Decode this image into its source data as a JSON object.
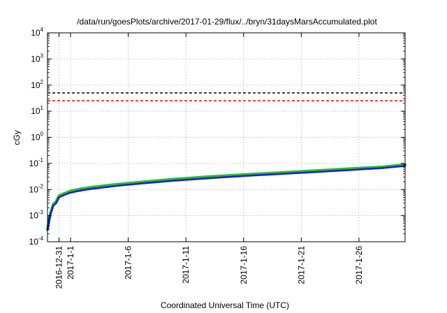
{
  "chart_data": {
    "type": "line",
    "title": "/data/run/goesPlots/archive/2017-01-29/flux/../bryn/31daysMarsAccumulated.plot",
    "xlabel": "Coordinated Universal Time (UTC)",
    "ylabel": "cGy",
    "yscale": "log",
    "ylim": [
      0.0001,
      10000
    ],
    "xlim": [
      "2016-12-30",
      "2017-01-30"
    ],
    "grid": true,
    "y_ticks": [
      {
        "base": "10",
        "exp": "-4",
        "value": 0.0001
      },
      {
        "base": "10",
        "exp": "-3",
        "value": 0.001
      },
      {
        "base": "10",
        "exp": "-2",
        "value": 0.01
      },
      {
        "base": "10",
        "exp": "-1",
        "value": 0.1
      },
      {
        "base": "10",
        "exp": "0",
        "value": 1
      },
      {
        "base": "10",
        "exp": "1",
        "value": 10
      },
      {
        "base": "10",
        "exp": "2",
        "value": 100
      },
      {
        "base": "10",
        "exp": "3",
        "value": 1000
      },
      {
        "base": "10",
        "exp": "4",
        "value": 10000
      }
    ],
    "x_ticks": [
      {
        "label": "2016-12-31",
        "date": "2016-12-31"
      },
      {
        "label": "2017-1-1",
        "date": "2017-01-01"
      },
      {
        "label": "2017-1-6",
        "date": "2017-01-06"
      },
      {
        "label": "2017-1-11",
        "date": "2017-01-11"
      },
      {
        "label": "2017-1-16",
        "date": "2017-01-16"
      },
      {
        "label": "2017-1-21",
        "date": "2017-01-21"
      },
      {
        "label": "2017-1-26",
        "date": "2017-01-26"
      }
    ],
    "series": [
      {
        "color": "#22c422",
        "x": [
          "2016-12-30",
          "2016-12-30T06:00",
          "2016-12-30T12:00",
          "2016-12-30T18:00",
          "2016-12-31",
          "2016-12-31T12:00",
          "2017-01-01",
          "2017-01-02",
          "2017-01-03",
          "2017-01-05",
          "2017-01-07",
          "2017-01-10",
          "2017-01-13",
          "2017-01-16",
          "2017-01-19",
          "2017-01-22",
          "2017-01-25",
          "2017-01-28",
          "2017-01-30"
        ],
        "values": [
          0.0003,
          0.0012,
          0.0027,
          0.0035,
          0.0058,
          0.0072,
          0.0088,
          0.0108,
          0.0125,
          0.0158,
          0.0192,
          0.025,
          0.031,
          0.037,
          0.044,
          0.052,
          0.062,
          0.073,
          0.09
        ]
      },
      {
        "color": "#1818e8",
        "x": [
          "2016-12-30",
          "2016-12-30T06:00",
          "2016-12-30T12:00",
          "2016-12-30T18:00",
          "2016-12-31",
          "2016-12-31T12:00",
          "2017-01-01",
          "2017-01-02",
          "2017-01-03",
          "2017-01-05",
          "2017-01-07",
          "2017-01-10",
          "2017-01-13",
          "2017-01-16",
          "2017-01-19",
          "2017-01-22",
          "2017-01-25",
          "2017-01-28",
          "2017-01-30"
        ],
        "values": [
          0.00028,
          0.0011,
          0.0024,
          0.003,
          0.005,
          0.0063,
          0.0076,
          0.0094,
          0.0109,
          0.0138,
          0.0168,
          0.0218,
          0.027,
          0.033,
          0.039,
          0.046,
          0.055,
          0.066,
          0.08
        ]
      }
    ],
    "reference_lines": [
      {
        "value": 50,
        "color": "#000000",
        "style": "dashed"
      },
      {
        "value": 25,
        "color": "#ff0000",
        "style": "dashed"
      }
    ]
  }
}
